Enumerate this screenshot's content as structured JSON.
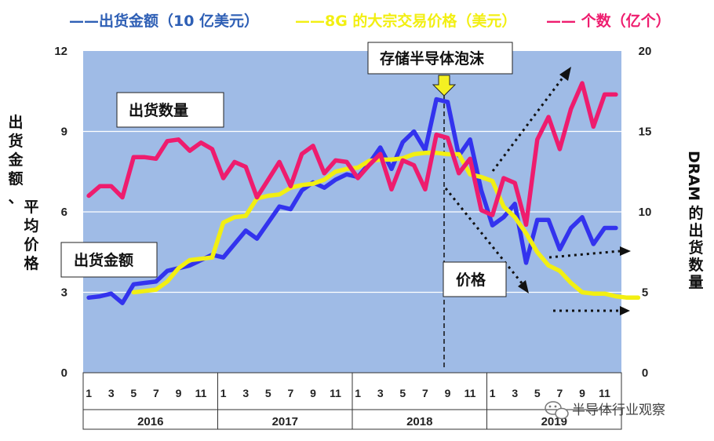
{
  "chart_data": {
    "type": "line",
    "legend": {
      "shipment": "——出货金额（10 亿美元）",
      "price": "——8G 的大宗交易价格（美元）",
      "units": "—— 个数（亿个）"
    },
    "left_axis_title": [
      "出",
      "货",
      "金",
      "额",
      "、",
      "平",
      "均",
      "价",
      "格"
    ],
    "right_axis_title_latin": "DRAM",
    "right_axis_title": [
      "的",
      "出",
      "货",
      "数",
      "量"
    ],
    "left_axis": {
      "min": 0,
      "max": 12,
      "ticks": [
        "0",
        "3",
        "6",
        "9",
        "12"
      ]
    },
    "right_axis": {
      "min": 0,
      "max": 20,
      "ticks": [
        "0",
        "5",
        "10",
        "15",
        "20"
      ]
    },
    "month_labels": [
      "1",
      "3",
      "5",
      "7",
      "9",
      "11"
    ],
    "years": [
      "2016",
      "2017",
      "2018",
      "2019"
    ],
    "series": [
      {
        "name": "出货金额（10 亿美元）",
        "axis": "left",
        "color": "#3333ee",
        "start_month_index": 0,
        "values": [
          2.8,
          2.85,
          2.95,
          2.6,
          3.3,
          3.35,
          3.4,
          3.8,
          3.9,
          4.0,
          4.2,
          4.4,
          4.3,
          4.8,
          5.3,
          5.0,
          5.6,
          6.2,
          6.1,
          6.8,
          7.1,
          6.9,
          7.2,
          7.4,
          7.3,
          7.8,
          8.4,
          7.6,
          8.6,
          9.0,
          8.3,
          10.2,
          10.1,
          8.1,
          8.7,
          6.8,
          5.5,
          5.8,
          6.3,
          4.1,
          5.7,
          5.7,
          4.6,
          5.4,
          5.8,
          4.8,
          5.4,
          5.4
        ]
      },
      {
        "name": "8G 的大宗交易价格（美元）",
        "axis": "left",
        "color": "#f2ef12",
        "start_month_index": 4,
        "values": [
          3.0,
          3.05,
          3.1,
          3.4,
          3.9,
          4.2,
          4.25,
          4.3,
          5.6,
          5.8,
          5.85,
          6.5,
          6.6,
          6.65,
          6.9,
          7.0,
          7.05,
          7.2,
          7.5,
          7.6,
          7.65,
          7.9,
          7.95,
          7.95,
          8.0,
          8.15,
          8.2,
          8.2,
          8.15,
          8.15,
          7.4,
          7.3,
          7.15,
          6.2,
          5.8,
          5.2,
          4.5,
          4.0,
          3.8,
          3.35,
          3.0,
          2.95,
          2.95,
          2.85,
          2.8,
          2.8
        ]
      },
      {
        "name": "个数（亿个）",
        "axis": "right",
        "color": "#ee1c6e",
        "start_month_index": 0,
        "values": [
          11.0,
          11.6,
          11.6,
          10.9,
          13.4,
          13.4,
          13.3,
          14.4,
          14.5,
          13.8,
          14.3,
          13.9,
          12.1,
          13.1,
          12.8,
          10.9,
          12.0,
          13.1,
          11.6,
          13.6,
          14.1,
          12.4,
          13.2,
          13.1,
          12.1,
          12.9,
          13.6,
          11.4,
          13.2,
          12.9,
          11.4,
          14.8,
          14.6,
          12.4,
          13.3,
          10.1,
          9.8,
          12.1,
          11.8,
          9.2,
          14.5,
          15.9,
          13.9,
          16.4,
          18.0,
          15.3,
          17.3,
          17.3
        ]
      }
    ],
    "annotations": {
      "bubble": "存储半导体泡沫",
      "units_label": "出货数量",
      "shipment_label": "出货金额",
      "price_label": "价格"
    },
    "watermark": "半导体行业观察",
    "colors": {
      "plot_bg": "#9fbbe6",
      "grid": "#ffffff",
      "bubble_arrow": "#f4f022"
    }
  }
}
